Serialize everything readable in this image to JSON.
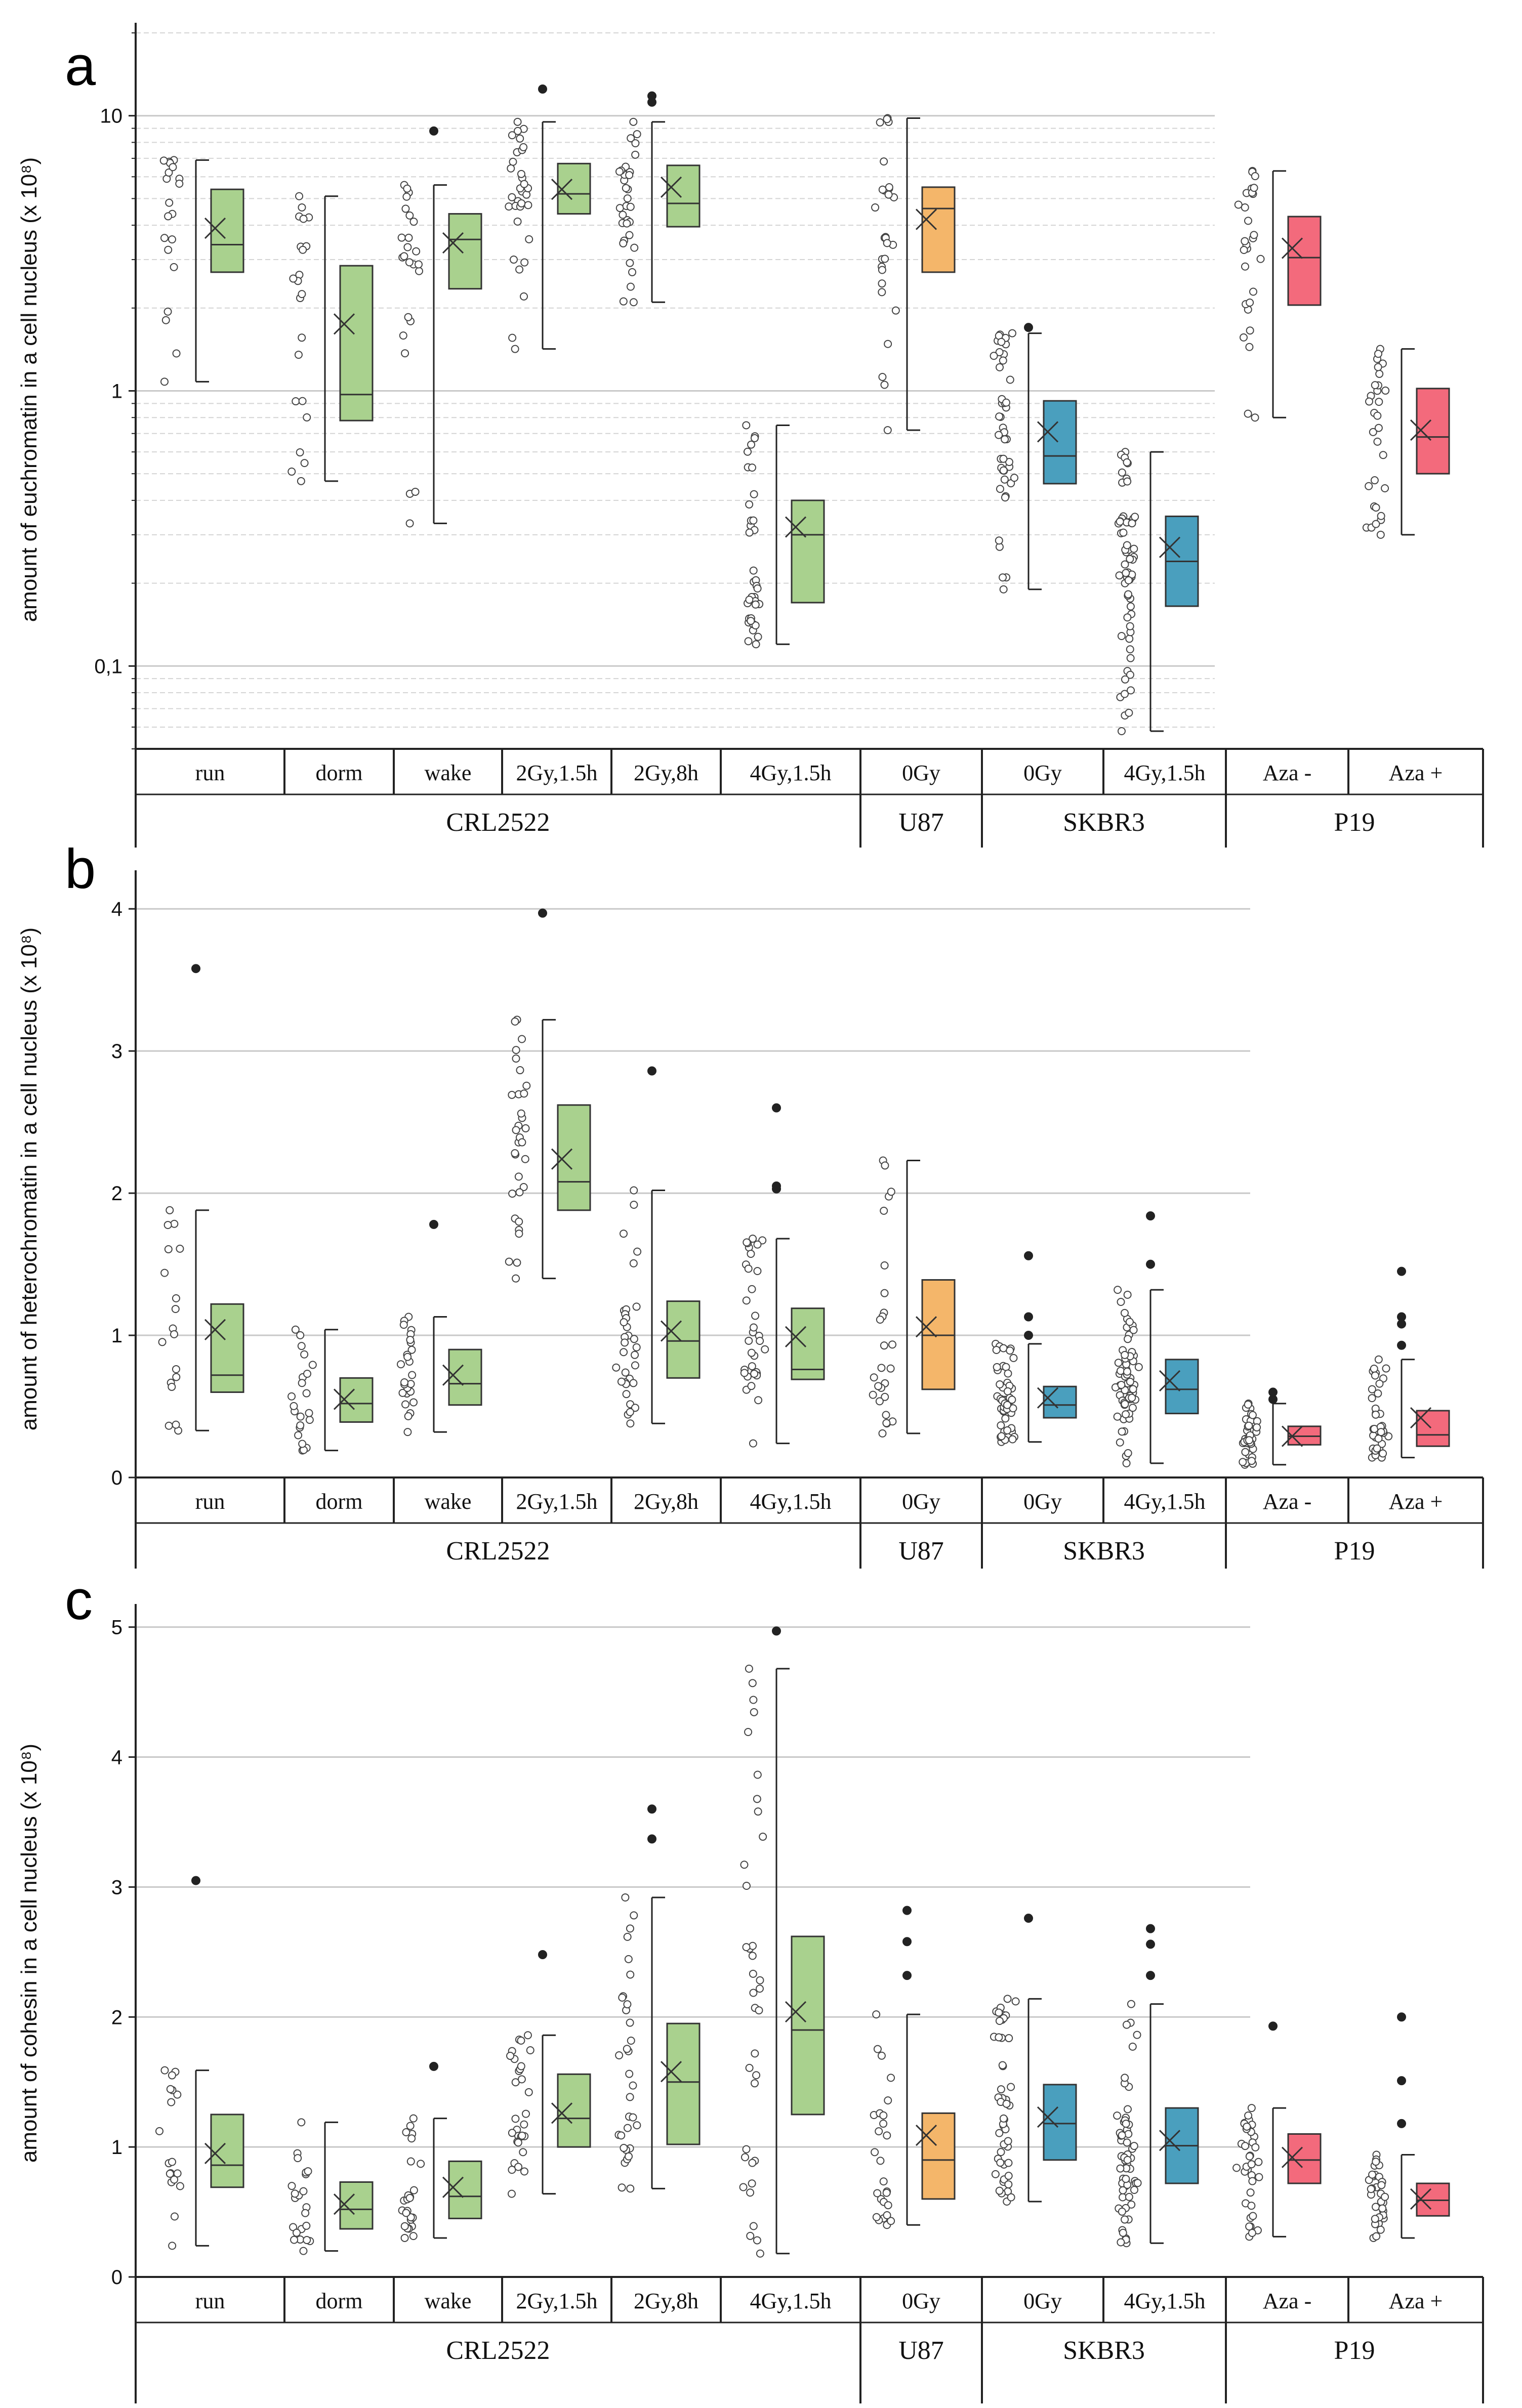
{
  "figure": {
    "group_labels": [
      "CRL2522",
      "U87",
      "SKBR3",
      "P19"
    ],
    "category_labels": [
      "run",
      "dorm",
      "wake",
      "2Gy,1.5h",
      "2Gy,8h",
      "4Gy,1.5h",
      "0Gy",
      "0Gy",
      "4Gy,1.5h",
      "Aza -",
      "Aza +"
    ],
    "colors": {
      "CRL2522": "#a9d18e",
      "U87": "#f4b66a",
      "SKBR3": "#4a9fbe",
      "P19": "#f36a7c"
    }
  },
  "chart_data": [
    {
      "panel": "a",
      "type": "box",
      "scale": "log",
      "ylabel": "amount of euchromatin in a cell nucleus (x 10⁸)",
      "ylim": [
        0.05,
        20
      ],
      "tick_values": [
        0.1,
        1,
        10
      ],
      "tick_labels": [
        "0,1",
        "1",
        "10"
      ],
      "categories": [
        "run",
        "dorm",
        "wake",
        "2Gy,1.5h",
        "2Gy,8h",
        "4Gy,1.5h",
        "0Gy",
        "0Gy",
        "4Gy,1.5h",
        "Aza -",
        "Aza +"
      ],
      "series": [
        {
          "name": "run",
          "group": "CRL2522",
          "min": 1.08,
          "q1": 2.7,
          "median": 3.4,
          "q3": 5.4,
          "max": 6.9,
          "mean": 3.9,
          "n": 20,
          "outliers": []
        },
        {
          "name": "dorm",
          "group": "CRL2522",
          "min": 0.47,
          "q1": 0.78,
          "median": 0.97,
          "q3": 2.85,
          "max": 5.1,
          "mean": 1.75,
          "n": 22,
          "outliers": []
        },
        {
          "name": "wake",
          "group": "CRL2522",
          "min": 0.33,
          "q1": 2.35,
          "median": 3.55,
          "q3": 4.4,
          "max": 5.6,
          "mean": 3.45,
          "n": 24,
          "outliers": [
            8.8
          ]
        },
        {
          "name": "2Gy,1.5h",
          "group": "CRL2522",
          "min": 1.42,
          "q1": 4.4,
          "median": 5.2,
          "q3": 6.7,
          "max": 9.5,
          "mean": 5.4,
          "n": 32,
          "outliers": [
            12.5
          ]
        },
        {
          "name": "2Gy,8h",
          "group": "CRL2522",
          "min": 2.1,
          "q1": 3.95,
          "median": 4.8,
          "q3": 6.6,
          "max": 9.5,
          "mean": 5.5,
          "n": 32,
          "outliers": [
            11.2,
            11.8
          ]
        },
        {
          "name": "4Gy,1.5h",
          "group": "CRL2522",
          "min": 0.12,
          "q1": 0.17,
          "median": 0.3,
          "q3": 0.4,
          "max": 0.75,
          "mean": 0.32,
          "n": 36,
          "outliers": []
        },
        {
          "name": "0Gy",
          "group": "U87",
          "min": 0.72,
          "q1": 2.7,
          "median": 4.6,
          "q3": 5.5,
          "max": 9.8,
          "mean": 4.2,
          "n": 28,
          "outliers": []
        },
        {
          "name": "0Gy",
          "group": "SKBR3",
          "min": 0.19,
          "q1": 0.46,
          "median": 0.58,
          "q3": 0.92,
          "max": 1.62,
          "mean": 0.71,
          "n": 44,
          "outliers": [
            1.7
          ]
        },
        {
          "name": "4Gy,1.5h",
          "group": "SKBR3",
          "min": 0.058,
          "q1": 0.165,
          "median": 0.24,
          "q3": 0.35,
          "max": 0.6,
          "mean": 0.27,
          "n": 60,
          "outliers": []
        },
        {
          "name": "Aza -",
          "group": "P19",
          "min": 0.8,
          "q1": 2.05,
          "median": 3.05,
          "q3": 4.3,
          "max": 6.3,
          "mean": 3.3,
          "n": 28,
          "outliers": []
        },
        {
          "name": "Aza +",
          "group": "P19",
          "min": 0.3,
          "q1": 0.5,
          "median": 0.68,
          "q3": 1.02,
          "max": 1.42,
          "mean": 0.72,
          "n": 30,
          "outliers": []
        }
      ]
    },
    {
      "panel": "b",
      "type": "box",
      "scale": "linear",
      "ylabel": "amount of heterochromatin in a cell nucleus (x 10⁸)",
      "ylim": [
        0,
        4.2
      ],
      "tick_values": [
        0,
        1,
        2,
        3,
        4
      ],
      "tick_labels": [
        "0",
        "1",
        "2",
        "3",
        "4"
      ],
      "categories": [
        "run",
        "dorm",
        "wake",
        "2Gy,1.5h",
        "2Gy,8h",
        "4Gy,1.5h",
        "0Gy",
        "0Gy",
        "4Gy,1.5h",
        "Aza -",
        "Aza +"
      ],
      "series": [
        {
          "name": "run",
          "group": "CRL2522",
          "min": 0.33,
          "q1": 0.6,
          "median": 0.72,
          "q3": 1.22,
          "max": 1.88,
          "mean": 1.04,
          "n": 18,
          "outliers": [
            3.58
          ]
        },
        {
          "name": "dorm",
          "group": "CRL2522",
          "min": 0.19,
          "q1": 0.39,
          "median": 0.52,
          "q3": 0.7,
          "max": 1.04,
          "mean": 0.55,
          "n": 22,
          "outliers": []
        },
        {
          "name": "wake",
          "group": "CRL2522",
          "min": 0.32,
          "q1": 0.51,
          "median": 0.66,
          "q3": 0.9,
          "max": 1.13,
          "mean": 0.72,
          "n": 26,
          "outliers": [
            1.78
          ]
        },
        {
          "name": "2Gy,1.5h",
          "group": "CRL2522",
          "min": 1.4,
          "q1": 1.88,
          "median": 2.08,
          "q3": 2.62,
          "max": 3.22,
          "mean": 2.24,
          "n": 32,
          "outliers": [
            3.97
          ]
        },
        {
          "name": "2Gy,8h",
          "group": "CRL2522",
          "min": 0.38,
          "q1": 0.7,
          "median": 0.96,
          "q3": 1.24,
          "max": 2.02,
          "mean": 1.03,
          "n": 34,
          "outliers": [
            2.86
          ]
        },
        {
          "name": "4Gy,1.5h",
          "group": "CRL2522",
          "min": 0.24,
          "q1": 0.69,
          "median": 0.76,
          "q3": 1.19,
          "max": 1.68,
          "mean": 0.99,
          "n": 34,
          "outliers": [
            2.03,
            2.05,
            2.6
          ]
        },
        {
          "name": "0Gy",
          "group": "U87",
          "min": 0.31,
          "q1": 0.62,
          "median": 1.0,
          "q3": 1.39,
          "max": 2.23,
          "mean": 1.06,
          "n": 26,
          "outliers": []
        },
        {
          "name": "0Gy",
          "group": "SKBR3",
          "min": 0.25,
          "q1": 0.42,
          "median": 0.51,
          "q3": 0.64,
          "max": 0.94,
          "mean": 0.56,
          "n": 48,
          "outliers": [
            1.0,
            1.13,
            1.56
          ]
        },
        {
          "name": "4Gy,1.5h",
          "group": "SKBR3",
          "min": 0.1,
          "q1": 0.45,
          "median": 0.62,
          "q3": 0.83,
          "max": 1.32,
          "mean": 0.68,
          "n": 60,
          "outliers": [
            1.5,
            1.84
          ]
        },
        {
          "name": "Aza -",
          "group": "P19",
          "min": 0.09,
          "q1": 0.23,
          "median": 0.29,
          "q3": 0.36,
          "max": 0.52,
          "mean": 0.29,
          "n": 40,
          "outliers": [
            0.55,
            0.6
          ]
        },
        {
          "name": "Aza +",
          "group": "P19",
          "min": 0.14,
          "q1": 0.22,
          "median": 0.3,
          "q3": 0.47,
          "max": 0.83,
          "mean": 0.42,
          "n": 36,
          "outliers": [
            0.93,
            1.08,
            1.13,
            1.45
          ]
        }
      ]
    },
    {
      "panel": "c",
      "type": "box",
      "scale": "linear",
      "ylabel": "amount of cohesin in a cell nucleus (x 10⁸)",
      "ylim": [
        0,
        5.1
      ],
      "tick_values": [
        0,
        1,
        2,
        3,
        4,
        5
      ],
      "tick_labels": [
        "0",
        "1",
        "2",
        "3",
        "4",
        "5"
      ],
      "categories": [
        "run",
        "dorm",
        "wake",
        "2Gy,1.5h",
        "2Gy,8h",
        "4Gy,1.5h",
        "0Gy",
        "0Gy",
        "4Gy,1.5h",
        "Aza -",
        "Aza +"
      ],
      "series": [
        {
          "name": "run",
          "group": "CRL2522",
          "min": 0.24,
          "q1": 0.69,
          "median": 0.86,
          "q3": 1.25,
          "max": 1.59,
          "mean": 0.95,
          "n": 18,
          "outliers": [
            3.05
          ]
        },
        {
          "name": "dorm",
          "group": "CRL2522",
          "min": 0.2,
          "q1": 0.37,
          "median": 0.52,
          "q3": 0.73,
          "max": 1.19,
          "mean": 0.56,
          "n": 22,
          "outliers": []
        },
        {
          "name": "wake",
          "group": "CRL2522",
          "min": 0.3,
          "q1": 0.45,
          "median": 0.62,
          "q3": 0.89,
          "max": 1.22,
          "mean": 0.69,
          "n": 26,
          "outliers": [
            1.62
          ]
        },
        {
          "name": "2Gy,1.5h",
          "group": "CRL2522",
          "min": 0.64,
          "q1": 1.0,
          "median": 1.22,
          "q3": 1.56,
          "max": 1.86,
          "mean": 1.26,
          "n": 30,
          "outliers": [
            2.48
          ]
        },
        {
          "name": "2Gy,8h",
          "group": "CRL2522",
          "min": 0.68,
          "q1": 1.02,
          "median": 1.5,
          "q3": 1.95,
          "max": 2.92,
          "mean": 1.58,
          "n": 32,
          "outliers": [
            3.37,
            3.6
          ]
        },
        {
          "name": "4Gy,1.5h",
          "group": "CRL2522",
          "min": 0.18,
          "q1": 1.25,
          "median": 1.9,
          "q3": 2.62,
          "max": 4.68,
          "mean": 2.04,
          "n": 36,
          "outliers": [
            4.97
          ]
        },
        {
          "name": "0Gy",
          "group": "U87",
          "min": 0.4,
          "q1": 0.6,
          "median": 0.9,
          "q3": 1.26,
          "max": 2.02,
          "mean": 1.09,
          "n": 26,
          "outliers": [
            2.32,
            2.58,
            2.82
          ]
        },
        {
          "name": "0Gy",
          "group": "SKBR3",
          "min": 0.58,
          "q1": 0.9,
          "median": 1.18,
          "q3": 1.48,
          "max": 2.14,
          "mean": 1.23,
          "n": 48,
          "outliers": [
            2.76
          ]
        },
        {
          "name": "4Gy,1.5h",
          "group": "SKBR3",
          "min": 0.26,
          "q1": 0.72,
          "median": 1.01,
          "q3": 1.3,
          "max": 2.1,
          "mean": 1.05,
          "n": 60,
          "outliers": [
            2.32,
            2.56,
            2.68
          ]
        },
        {
          "name": "Aza -",
          "group": "P19",
          "min": 0.31,
          "q1": 0.72,
          "median": 0.9,
          "q3": 1.1,
          "max": 1.3,
          "mean": 0.92,
          "n": 36,
          "outliers": [
            1.93
          ]
        },
        {
          "name": "Aza +",
          "group": "P19",
          "min": 0.3,
          "q1": 0.47,
          "median": 0.59,
          "q3": 0.72,
          "max": 0.94,
          "mean": 0.6,
          "n": 34,
          "outliers": [
            1.18,
            1.51,
            2.0
          ]
        }
      ]
    }
  ]
}
